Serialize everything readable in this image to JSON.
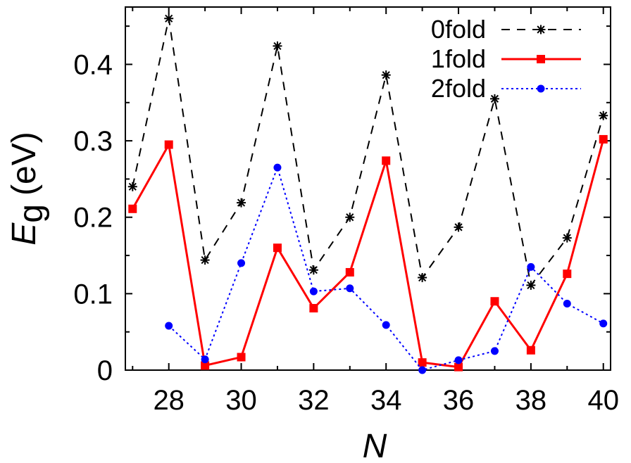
{
  "chart_data": {
    "type": "line",
    "title": "",
    "xlabel": "N",
    "ylabel": {
      "symbol": "E",
      "subscript": "g",
      "unit": "(eV)"
    },
    "xlim": [
      26.8,
      40.2
    ],
    "ylim": [
      0,
      0.475
    ],
    "x_ticks": [
      28,
      30,
      32,
      34,
      36,
      38,
      40
    ],
    "x_tick_labels": [
      "28",
      "30",
      "32",
      "34",
      "36",
      "38",
      "40"
    ],
    "y_ticks": [
      0,
      0.1,
      0.2,
      0.3,
      0.4
    ],
    "y_tick_labels": [
      "0",
      "0.1",
      "0.2",
      "0.3",
      "0.4"
    ],
    "grid": false,
    "legend_position": "top-right",
    "series": [
      {
        "name": "0fold",
        "color": "#000000",
        "style": "dashed",
        "marker": "star",
        "points": [
          [
            27,
            0.24
          ],
          [
            28,
            0.46
          ],
          [
            29,
            0.144
          ],
          [
            30,
            0.219
          ],
          [
            31,
            0.424
          ],
          [
            32,
            0.131
          ],
          [
            33,
            0.2
          ],
          [
            34,
            0.386
          ],
          [
            35,
            0.121
          ],
          [
            36,
            0.187
          ],
          [
            37,
            0.355
          ],
          [
            38,
            0.111
          ],
          [
            39,
            0.173
          ],
          [
            40,
            0.333
          ]
        ]
      },
      {
        "name": "1fold",
        "color": "#ff0000",
        "style": "solid",
        "marker": "square",
        "points": [
          [
            27,
            0.211
          ],
          [
            28,
            0.295
          ],
          [
            29,
            0.006
          ],
          [
            30,
            0.017
          ],
          [
            31,
            0.16
          ],
          [
            32,
            0.081
          ],
          [
            33,
            0.128
          ],
          [
            34,
            0.274
          ],
          [
            35,
            0.01
          ],
          [
            36,
            0.004
          ],
          [
            37,
            0.09
          ],
          [
            38,
            0.026
          ],
          [
            39,
            0.126
          ],
          [
            40,
            0.302
          ]
        ]
      },
      {
        "name": "2fold",
        "color": "#0000ff",
        "style": "dotted",
        "marker": "circle",
        "points": [
          [
            28,
            0.058
          ],
          [
            29,
            0.014
          ],
          [
            30,
            0.14
          ],
          [
            31,
            0.265
          ],
          [
            32,
            0.103
          ],
          [
            33,
            0.107
          ],
          [
            34,
            0.059
          ],
          [
            35,
            0.0
          ],
          [
            36,
            0.013
          ],
          [
            37,
            0.025
          ],
          [
            38,
            0.135
          ],
          [
            39,
            0.087
          ],
          [
            40,
            0.061
          ]
        ]
      }
    ]
  }
}
